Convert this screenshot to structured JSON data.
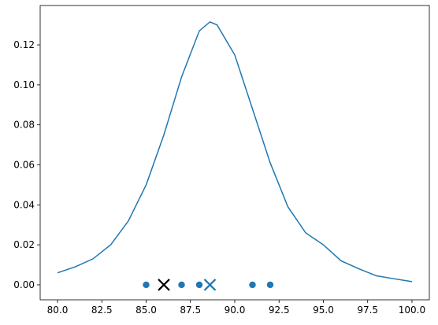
{
  "chart_data": {
    "type": "line",
    "xlim": [
      79.02,
      100.98
    ],
    "ylim": [
      -0.0075,
      0.1397
    ],
    "xticks": [
      {
        "value": 80,
        "label": "80.0"
      },
      {
        "value": 82.5,
        "label": "82.5"
      },
      {
        "value": 85,
        "label": "85.0"
      },
      {
        "value": 87.5,
        "label": "87.5"
      },
      {
        "value": 90,
        "label": "90.0"
      },
      {
        "value": 92.5,
        "label": "92.5"
      },
      {
        "value": 95,
        "label": "95.0"
      },
      {
        "value": 97.5,
        "label": "97.5"
      },
      {
        "value": 100,
        "label": "100.0"
      }
    ],
    "yticks": [
      {
        "value": 0,
        "label": "0.00"
      },
      {
        "value": 0.02,
        "label": "0.02"
      },
      {
        "value": 0.04,
        "label": "0.04"
      },
      {
        "value": 0.06,
        "label": "0.06"
      },
      {
        "value": 0.08,
        "label": "0.08"
      },
      {
        "value": 0.1,
        "label": "0.10"
      },
      {
        "value": 0.12,
        "label": "0.12"
      }
    ],
    "series": [
      {
        "type": "line",
        "color": "#1f77b4",
        "x": [
          80,
          81,
          82,
          83,
          84,
          85,
          86,
          87,
          88,
          88.6,
          89,
          90,
          91,
          92,
          93,
          94,
          95,
          96,
          97,
          98,
          99,
          100
        ],
        "values": [
          0.006,
          0.009,
          0.013,
          0.02,
          0.032,
          0.05,
          0.075,
          0.104,
          0.127,
          0.1315,
          0.13,
          0.115,
          0.088,
          0.061,
          0.039,
          0.026,
          0.02,
          0.012,
          0.008,
          0.0045,
          0.003,
          0.0016
        ]
      },
      {
        "type": "scatter",
        "marker": "o",
        "color": "#1f77b4",
        "x": [
          85,
          87,
          88,
          91,
          92
        ],
        "values": [
          0,
          0,
          0,
          0,
          0
        ]
      },
      {
        "type": "scatter",
        "marker": "x",
        "color": "#000000",
        "x": [
          86
        ],
        "values": [
          0
        ]
      },
      {
        "type": "scatter",
        "marker": "x",
        "color": "#1f77b4",
        "x": [
          88.6
        ],
        "values": [
          0
        ]
      }
    ]
  }
}
